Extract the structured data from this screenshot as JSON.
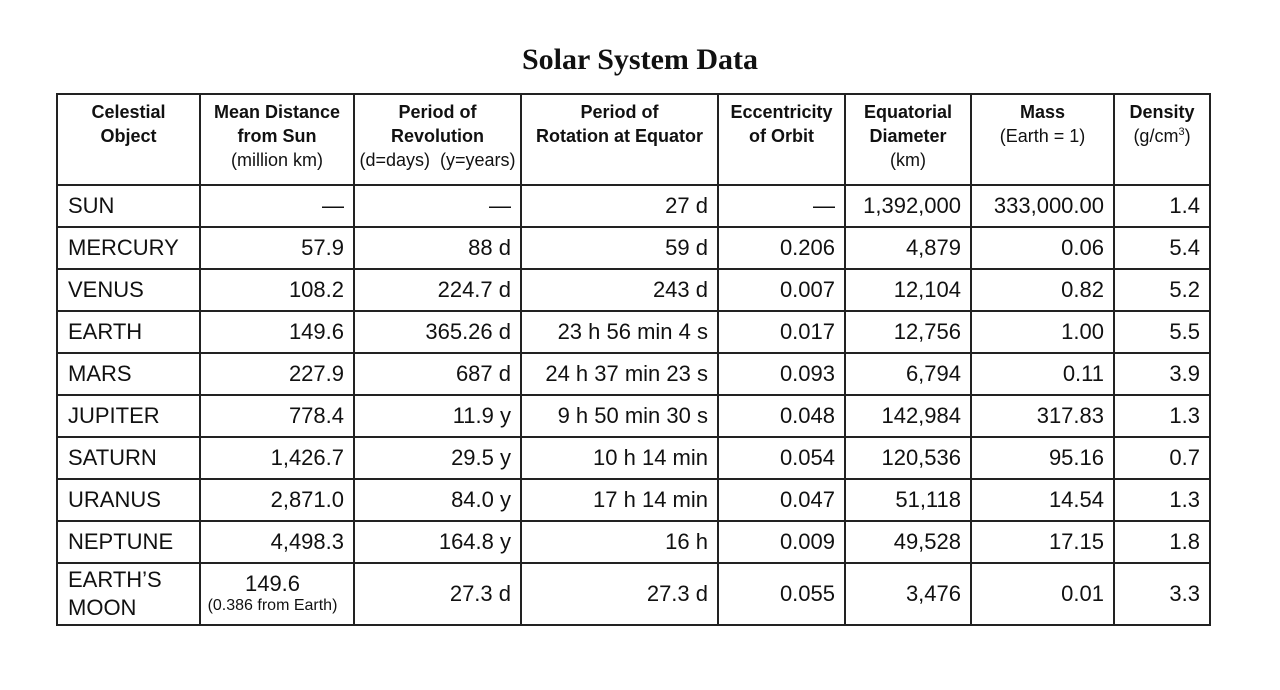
{
  "title": "Solar System Data",
  "headers": {
    "object": {
      "line1": "Celestial",
      "line2": "Object"
    },
    "distance": {
      "line1": "Mean Distance",
      "line2": "from Sun",
      "line3": "(million km)"
    },
    "revolution": {
      "line1": "Period of",
      "line2": "Revolution",
      "line3": "(d=days)  (y=years)"
    },
    "rotation": {
      "line1": "Period of",
      "line2": "Rotation at Equator"
    },
    "eccentricity": {
      "line1": "Eccentricity",
      "line2": "of Orbit"
    },
    "diameter": {
      "line1": "Equatorial",
      "line2": "Diameter",
      "line3": "(km)"
    },
    "mass": {
      "line1": "Mass",
      "line2": "(Earth = 1)"
    },
    "density": {
      "line1": "Density",
      "line2": "(g/cm",
      "sup": "3",
      "close": ")"
    }
  },
  "rows": [
    {
      "name": "SUN",
      "distance": "—",
      "revolution": "—",
      "rotation": "27 d",
      "eccentricity": "—",
      "diameter": "1,392,000",
      "mass": "333,000.00",
      "density": "1.4"
    },
    {
      "name": "MERCURY",
      "distance": "57.9",
      "revolution": "88 d",
      "rotation": "59 d",
      "eccentricity": "0.206",
      "diameter": "4,879",
      "mass": "0.06",
      "density": "5.4"
    },
    {
      "name": "VENUS",
      "distance": "108.2",
      "revolution": "224.7 d",
      "rotation": "243 d",
      "eccentricity": "0.007",
      "diameter": "12,104",
      "mass": "0.82",
      "density": "5.2"
    },
    {
      "name": "EARTH",
      "distance": "149.6",
      "revolution": "365.26 d",
      "rotation": "23 h 56 min 4 s",
      "eccentricity": "0.017",
      "diameter": "12,756",
      "mass": "1.00",
      "density": "5.5"
    },
    {
      "name": "MARS",
      "distance": "227.9",
      "revolution": "687 d",
      "rotation": "24 h 37 min 23 s",
      "eccentricity": "0.093",
      "diameter": "6,794",
      "mass": "0.11",
      "density": "3.9"
    },
    {
      "name": "JUPITER",
      "distance": "778.4",
      "revolution": "11.9 y",
      "rotation": "9 h 50 min 30 s",
      "eccentricity": "0.048",
      "diameter": "142,984",
      "mass": "317.83",
      "density": "1.3"
    },
    {
      "name": "SATURN",
      "distance": "1,426.7",
      "revolution": "29.5 y",
      "rotation": "10 h 14 min",
      "eccentricity": "0.054",
      "diameter": "120,536",
      "mass": "95.16",
      "density": "0.7"
    },
    {
      "name": "URANUS",
      "distance": "2,871.0",
      "revolution": "84.0 y",
      "rotation": "17 h 14 min",
      "eccentricity": "0.047",
      "diameter": "51,118",
      "mass": "14.54",
      "density": "1.3"
    },
    {
      "name": "NEPTUNE",
      "distance": "4,498.3",
      "revolution": "164.8 y",
      "rotation": "16 h",
      "eccentricity": "0.009",
      "diameter": "49,528",
      "mass": "17.15",
      "density": "1.8"
    }
  ],
  "moon": {
    "name_line1": "EARTH’S",
    "name_line2": "MOON",
    "distance": "149.6",
    "distance_note": "(0.386 from Earth)",
    "revolution": "27.3 d",
    "rotation": "27.3 d",
    "eccentricity": "0.055",
    "diameter": "3,476",
    "mass": "0.01",
    "density": "3.3"
  }
}
